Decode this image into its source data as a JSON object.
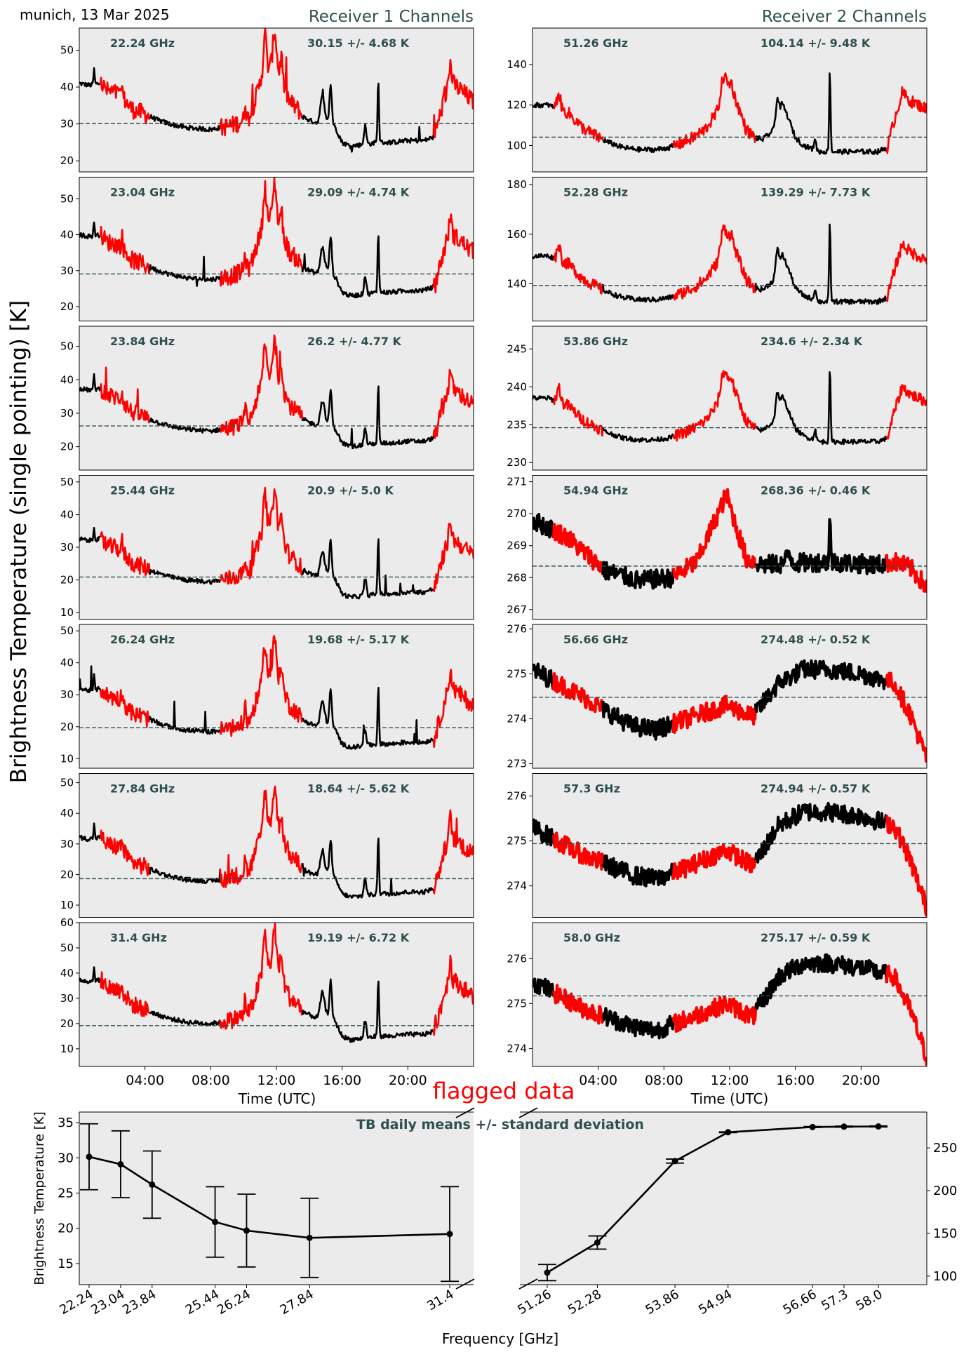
{
  "header": {
    "location_date": "munich, 13 Mar 2025",
    "receiver1_title": "Receiver 1 Channels",
    "receiver2_title": "Receiver 2 Channels"
  },
  "ylabel_main": "Brightness Temperature (single pointing) [K]",
  "xlabel_time": "Time (UTC)",
  "time_ticks": [
    "04:00",
    "08:00",
    "12:00",
    "16:00",
    "20:00"
  ],
  "flagged_label": "flagged data",
  "colors": {
    "panel_bg": "#ebebeb",
    "good": "#000000",
    "flagged": "#ff0000",
    "mean_line": "#2f4f4f",
    "label_text": "#2f4f4f"
  },
  "chart_data": [
    {
      "type": "line",
      "group": "receiver1",
      "x_unit": "hours UTC",
      "xlim": [
        0,
        24
      ],
      "panels": [
        {
          "freq": "22.24 GHz",
          "stats": "30.15 +/- 4.68 K",
          "mean": 30.15,
          "ylim": [
            17,
            56
          ],
          "yticks": [
            20,
            30,
            40,
            50
          ],
          "mode": "r1",
          "offset": 0,
          "scale": 1.0
        },
        {
          "freq": "23.04 GHz",
          "stats": "29.09 +/- 4.74 K",
          "mean": 29.09,
          "ylim": [
            16,
            56
          ],
          "yticks": [
            20,
            30,
            40,
            50
          ],
          "mode": "r1",
          "offset": -1,
          "scale": 1.0
        },
        {
          "freq": "23.84 GHz",
          "stats": "26.2 +/- 4.77 K",
          "mean": 26.2,
          "ylim": [
            13,
            56
          ],
          "yticks": [
            20,
            30,
            40,
            50
          ],
          "mode": "r1",
          "offset": -4,
          "scale": 1.02
        },
        {
          "freq": "25.44 GHz",
          "stats": "20.9 +/- 5.0 K",
          "mean": 20.9,
          "ylim": [
            8,
            52
          ],
          "yticks": [
            10,
            20,
            30,
            40,
            50
          ],
          "mode": "r1",
          "offset": -9.5,
          "scale": 1.05
        },
        {
          "freq": "26.24 GHz",
          "stats": "19.68 +/- 5.17 K",
          "mean": 19.68,
          "ylim": [
            7,
            52
          ],
          "yticks": [
            10,
            20,
            30,
            40,
            50
          ],
          "mode": "r1",
          "offset": -10.8,
          "scale": 1.08
        },
        {
          "freq": "27.84 GHz",
          "stats": "18.64 +/- 5.62 K",
          "mean": 18.64,
          "ylim": [
            6,
            53
          ],
          "yticks": [
            10,
            20,
            30,
            40,
            50
          ],
          "mode": "r1",
          "offset": -12,
          "scale": 1.15
        },
        {
          "freq": "31.4 GHz",
          "stats": "19.19 +/- 6.72 K",
          "mean": 19.19,
          "ylim": [
            3,
            60
          ],
          "yticks": [
            10,
            20,
            30,
            40,
            50,
            60
          ],
          "mode": "r1",
          "offset": -12,
          "scale": 1.4
        }
      ]
    },
    {
      "type": "line",
      "group": "receiver2",
      "x_unit": "hours UTC",
      "xlim": [
        0,
        24
      ],
      "panels": [
        {
          "freq": "51.26 GHz",
          "stats": "104.14 +/- 9.48 K",
          "mean": 104.14,
          "ylim": [
            87,
            158
          ],
          "yticks": [
            100,
            120,
            140
          ],
          "mode": "r2a",
          "base": 96,
          "amp": 1.0
        },
        {
          "freq": "52.28 GHz",
          "stats": "139.29 +/- 7.73 K",
          "mean": 139.29,
          "ylim": [
            125,
            183
          ],
          "yticks": [
            140,
            160,
            180
          ],
          "mode": "r2a",
          "base": 132,
          "amp": 0.8
        },
        {
          "freq": "53.86 GHz",
          "stats": "234.6 +/- 2.34 K",
          "mean": 234.6,
          "ylim": [
            229,
            248
          ],
          "yticks": [
            230,
            235,
            240,
            245
          ],
          "mode": "r2a",
          "base": 232.5,
          "amp": 0.25
        },
        {
          "freq": "54.94 GHz",
          "stats": "268.36 +/- 0.46 K",
          "mean": 268.36,
          "ylim": [
            266.7,
            271.2
          ],
          "yticks": [
            267,
            268,
            269,
            270,
            271
          ],
          "mode": "r2b",
          "start": 269.8,
          "low": 267.9,
          "bump": 270.6,
          "mid": 268.4,
          "end": 267.7,
          "noise": 0.3
        },
        {
          "freq": "56.66 GHz",
          "stats": "274.48 +/- 0.52 K",
          "mean": 274.48,
          "ylim": [
            272.9,
            276.1
          ],
          "yticks": [
            273,
            274,
            275,
            276
          ],
          "mode": "r2c",
          "start": 275.1,
          "low": 273.75,
          "bump": 274.3,
          "high": 275.1,
          "end": 273.1,
          "noise": 0.16
        },
        {
          "freq": "57.3 GHz",
          "stats": "274.94 +/- 0.57 K",
          "mean": 274.94,
          "ylim": [
            273.3,
            276.5
          ],
          "yticks": [
            274,
            275,
            276
          ],
          "mode": "r2c",
          "start": 275.3,
          "low": 274.15,
          "bump": 274.8,
          "high": 275.65,
          "end": 273.5,
          "noise": 0.16
        },
        {
          "freq": "58.0 GHz",
          "stats": "275.17 +/- 0.59 K",
          "mean": 275.17,
          "ylim": [
            273.6,
            276.8
          ],
          "yticks": [
            274,
            275,
            276
          ],
          "mode": "r2c",
          "start": 275.5,
          "low": 274.4,
          "bump": 275.0,
          "high": 275.9,
          "end": 273.8,
          "noise": 0.16
        }
      ]
    },
    {
      "type": "line",
      "group": "daily_means",
      "title": "TB daily means +/- standard deviation",
      "xlabel": "Frequency [GHz]",
      "ylabel": "Brightness Temperature [K]",
      "left": {
        "x": [
          22.24,
          23.04,
          23.84,
          25.44,
          26.24,
          27.84,
          31.4
        ],
        "tick_labels": [
          "22.24",
          "23.04",
          "23.84",
          "25.44",
          "26.24",
          "27.84",
          "31.4"
        ],
        "y": [
          30.15,
          29.09,
          26.2,
          20.9,
          19.68,
          18.64,
          19.19
        ],
        "err": [
          4.68,
          4.74,
          4.77,
          5.0,
          5.17,
          5.62,
          6.72
        ],
        "ylim": [
          12,
          36.5
        ],
        "yticks": [
          15,
          20,
          25,
          30,
          35
        ]
      },
      "right": {
        "x": [
          51.26,
          52.28,
          53.86,
          54.94,
          56.66,
          57.3,
          58.0
        ],
        "tick_labels": [
          "51.26",
          "52.28",
          "53.86",
          "54.94",
          "56.66",
          "57.3",
          "58.0"
        ],
        "y": [
          104.14,
          139.29,
          234.6,
          268.36,
          274.48,
          274.94,
          275.17
        ],
        "err": [
          9.48,
          7.73,
          2.34,
          0.46,
          0.52,
          0.57,
          0.59
        ],
        "ylim": [
          90,
          292
        ],
        "yticks": [
          100,
          150,
          200,
          250
        ]
      }
    }
  ]
}
